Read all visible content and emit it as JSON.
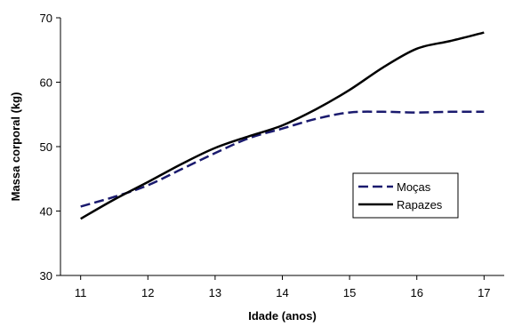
{
  "chart_data": {
    "type": "line",
    "title": "",
    "xlabel": "Idade (anos)",
    "ylabel": "Massa corporal (kg)",
    "xlim": [
      10.7,
      17.3
    ],
    "ylim": [
      30,
      70
    ],
    "xticks": [
      11,
      12,
      13,
      14,
      15,
      16,
      17
    ],
    "yticks": [
      30,
      40,
      50,
      60,
      70
    ],
    "grid": false,
    "legend_position": "right",
    "series": [
      {
        "name": "Moças",
        "color": "#1a1a6e",
        "style": "dashed",
        "x": [
          11,
          11.5,
          12,
          12.5,
          13,
          13.5,
          14,
          14.5,
          15,
          15.5,
          16,
          16.5,
          17
        ],
        "values": [
          40.7,
          42.2,
          44.0,
          46.5,
          49.0,
          51.3,
          52.8,
          54.3,
          55.3,
          55.4,
          55.3,
          55.4,
          55.4
        ]
      },
      {
        "name": "Rapazes",
        "color": "#000000",
        "style": "solid",
        "x": [
          11,
          11.5,
          12,
          12.5,
          13,
          13.5,
          14,
          14.5,
          15,
          15.5,
          16,
          16.5,
          17
        ],
        "values": [
          38.8,
          41.8,
          44.5,
          47.3,
          49.8,
          51.6,
          53.3,
          55.8,
          58.8,
          62.3,
          65.2,
          66.4,
          67.7
        ]
      }
    ]
  }
}
